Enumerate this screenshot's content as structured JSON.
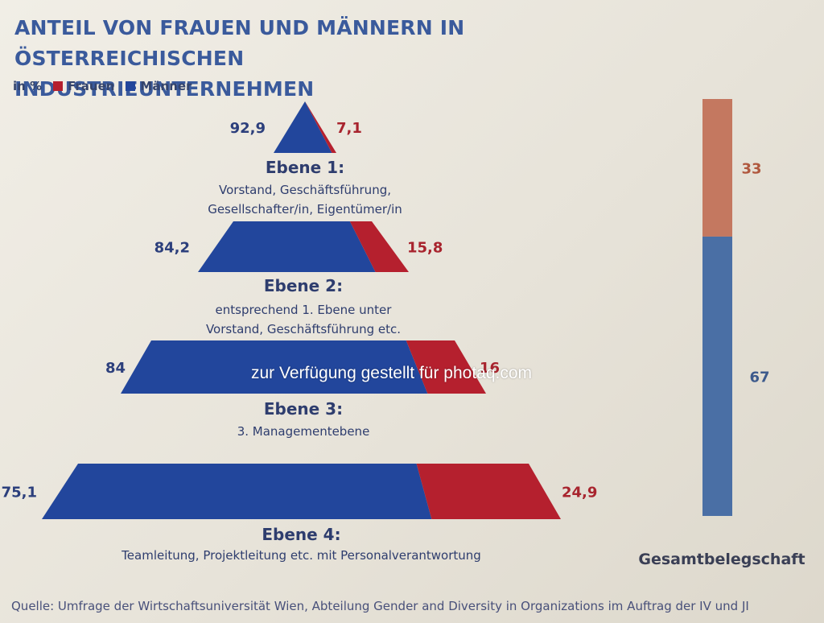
{
  "header": {
    "title_line1": "ANTEIL VON FRAUEN UND MÄNNERN IN ÖSTERREICHISCHEN",
    "title_line2": "INDUSTRIEUNTERNEHMEN"
  },
  "legend": {
    "unit": "in %",
    "items": [
      {
        "label": "Frauen",
        "color": "#b5202e"
      },
      {
        "label": "Männer",
        "color": "#22469c"
      }
    ]
  },
  "chart_data": [
    {
      "type": "bar",
      "subtype": "pyramid-stacked",
      "series": [
        {
          "name": "Männer",
          "color": "#22469c"
        },
        {
          "name": "Frauen",
          "color": "#b5202e"
        }
      ],
      "levels": [
        {
          "name": "Ebene 1:",
          "description": [
            "Vorstand, Geschäftsführung,",
            "Gesellschafter/in, Eigentümer/in"
          ],
          "men_label": "92,9",
          "women_label": "7,1",
          "men": 92.9,
          "women": 7.1
        },
        {
          "name": "Ebene 2:",
          "description": [
            "entsprechend 1. Ebene unter",
            "Vorstand, Geschäftsführung etc."
          ],
          "men_label": "84,2",
          "women_label": "15,8",
          "men": 84.2,
          "women": 15.8
        },
        {
          "name": "Ebene 3:",
          "description": [
            "3. Managementebene"
          ],
          "men_label": "84",
          "women_label": "16",
          "men": 84,
          "women": 16
        },
        {
          "name": "Ebene 4:",
          "description": [
            "Teamleitung, Projektleitung etc. mit Personalverantwortung"
          ],
          "men_label": "75,1",
          "women_label": "24,9",
          "men": 75.1,
          "women": 24.9
        }
      ]
    },
    {
      "type": "bar",
      "subtype": "stacked-100",
      "categories": [
        "Gesamtbelegschaft"
      ],
      "series": [
        {
          "name": "Männer",
          "color": "#4a6fa5",
          "values": [
            67
          ],
          "label": "67"
        },
        {
          "name": "Frauen",
          "color": "#c47860",
          "values": [
            33
          ],
          "label": "33"
        }
      ]
    }
  ],
  "watermark": "zur Verfügung gestellt für photaq.com",
  "source": "Quelle: Umfrage der Wirtschaftsuniversität Wien, Abteilung Gender and Diversity in Organizations im Auftrag der IV und JI"
}
